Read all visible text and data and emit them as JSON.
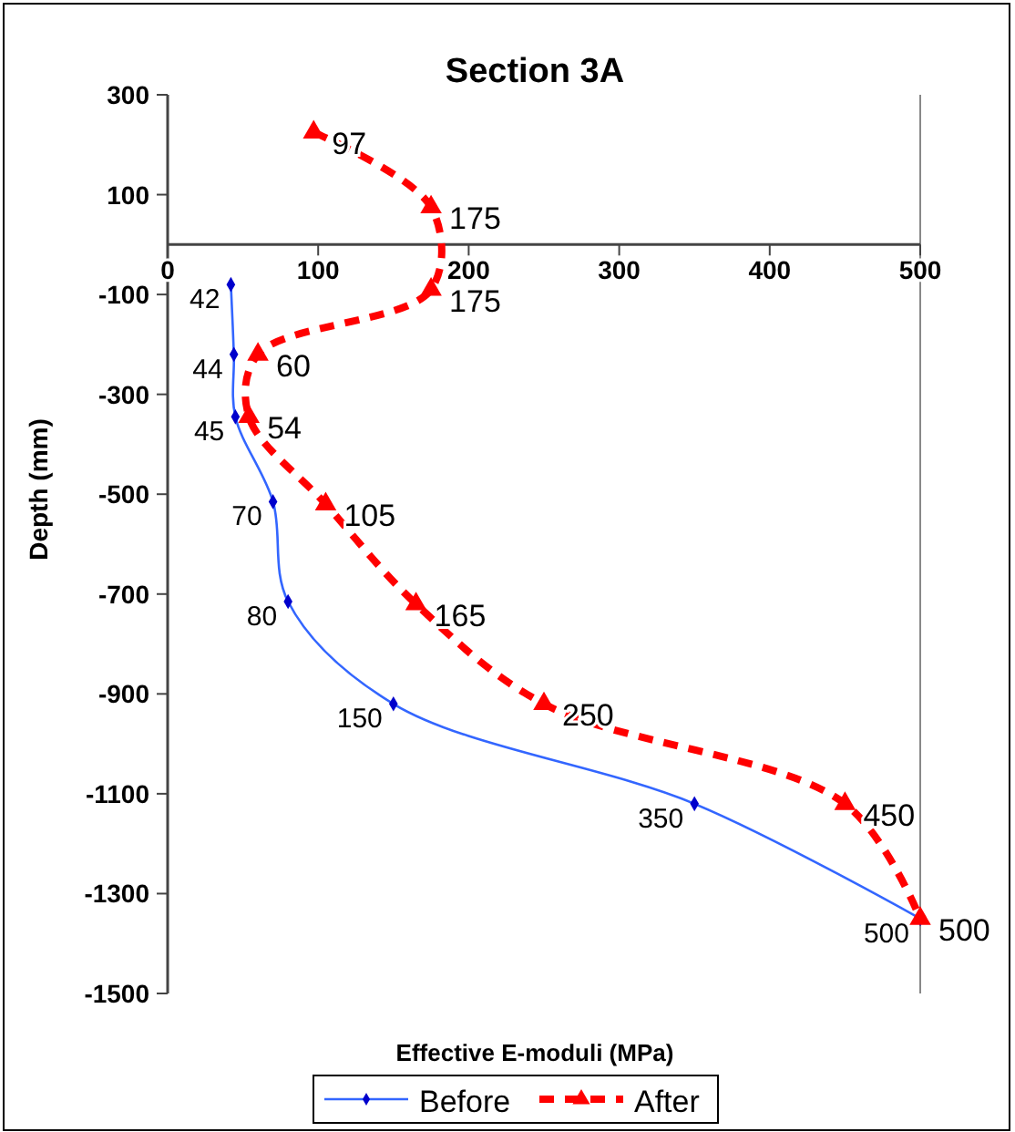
{
  "chart_data": {
    "type": "line",
    "orientation": "horizontal",
    "title": "Section 3A",
    "xlabel": "Effective E-moduli (MPa)",
    "ylabel": "Depth (mm)",
    "xlim": [
      0,
      500
    ],
    "xticks": [
      0,
      100,
      200,
      300,
      400,
      500
    ],
    "ylim": [
      -1500,
      300
    ],
    "yticks": [
      -1500,
      -1300,
      -1100,
      -900,
      -700,
      -500,
      -300,
      -100,
      100,
      300
    ],
    "legend": "bottom",
    "grid": false,
    "data_labels": true,
    "series": [
      {
        "name": "Before",
        "color": "#3366ff",
        "marker": "diamond",
        "line_style": "solid",
        "x": [
          -80,
          -220,
          -345,
          -515,
          -715,
          -920,
          -1120,
          -1350
        ],
        "values": [
          42,
          44,
          45,
          70,
          80,
          150,
          350,
          500
        ]
      },
      {
        "name": "After",
        "color": "#ff0000",
        "marker": "triangle",
        "line_style": "dashed",
        "x": [
          225,
          75,
          -90,
          -220,
          -345,
          -520,
          -720,
          -920,
          -1120,
          -1350
        ],
        "values": [
          97,
          175,
          175,
          60,
          54,
          105,
          165,
          250,
          450,
          500
        ]
      }
    ]
  }
}
